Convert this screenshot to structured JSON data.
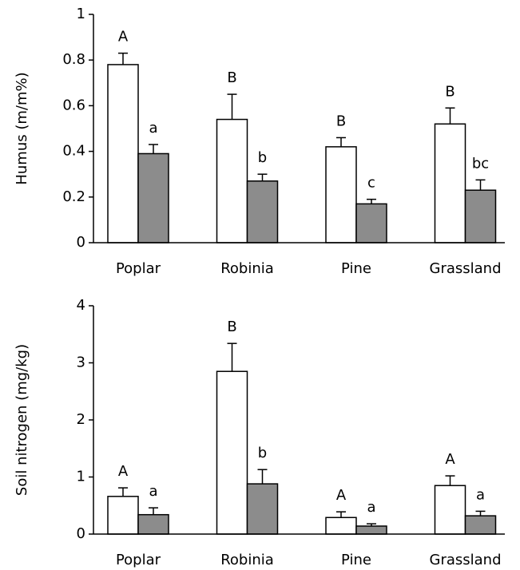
{
  "chart_data": [
    {
      "type": "bar",
      "y_label": "Humus (m/m%)",
      "categories": [
        "Poplar",
        "Robinia",
        "Pine",
        "Grassland"
      ],
      "series": [
        {
          "color": "#ffffff",
          "values": [
            0.78,
            0.54,
            0.42,
            0.52
          ],
          "errors": [
            0.05,
            0.11,
            0.04,
            0.07
          ],
          "letters": [
            "A",
            "B",
            "B",
            "B"
          ]
        },
        {
          "color": "#8c8c8c",
          "values": [
            0.39,
            0.27,
            0.17,
            0.23
          ],
          "errors": [
            0.04,
            0.03,
            0.02,
            0.045
          ],
          "letters": [
            "a",
            "b",
            "c",
            "bc"
          ]
        }
      ],
      "ylim": [
        0,
        1
      ],
      "yticks": [
        0,
        0.2,
        0.4,
        0.6,
        0.8,
        1
      ]
    },
    {
      "type": "bar",
      "y_label": "Soil nitrogen (mg/kg)",
      "categories": [
        "Poplar",
        "Robinia",
        "Pine",
        "Grassland"
      ],
      "series": [
        {
          "color": "#ffffff",
          "values": [
            0.66,
            2.85,
            0.29,
            0.85
          ],
          "errors": [
            0.15,
            0.49,
            0.1,
            0.17
          ],
          "letters": [
            "A",
            "B",
            "A",
            "A"
          ]
        },
        {
          "color": "#8c8c8c",
          "values": [
            0.34,
            0.88,
            0.14,
            0.32
          ],
          "errors": [
            0.12,
            0.25,
            0.04,
            0.08
          ],
          "letters": [
            "a",
            "b",
            "a",
            "a"
          ]
        }
      ],
      "ylim": [
        0,
        4
      ],
      "yticks": [
        0,
        1,
        2,
        3,
        4
      ]
    }
  ]
}
